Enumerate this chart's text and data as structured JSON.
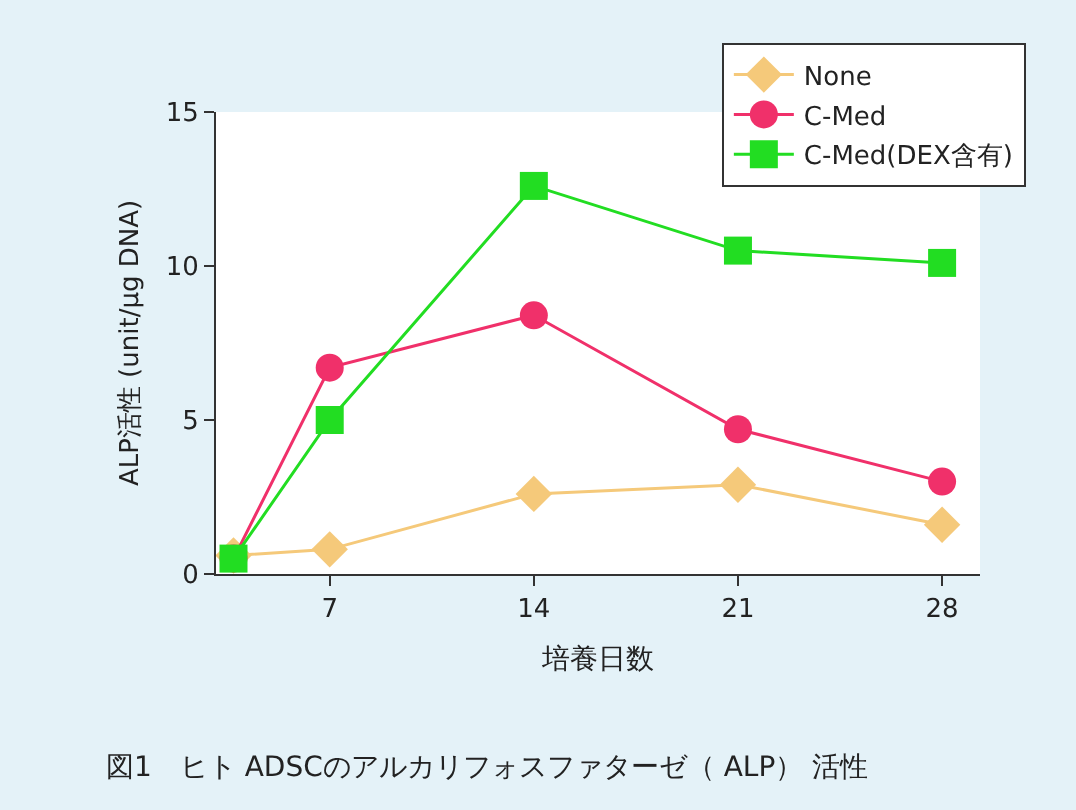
{
  "chart_data": {
    "type": "line",
    "xlabel": "培養日数",
    "ylabel": "ALP活性 (unit/μg DNA)",
    "x": [
      3.7,
      7,
      14,
      21,
      28
    ],
    "series": [
      {
        "name": "None",
        "color": "#f5c97a",
        "marker": "diamond",
        "values": [
          0.6,
          0.8,
          2.6,
          2.9,
          1.6
        ]
      },
      {
        "name": "C-Med",
        "color": "#f0306a",
        "marker": "circle",
        "values": [
          0.5,
          6.7,
          8.4,
          4.7,
          3.0
        ]
      },
      {
        "name": "C-Med(DEX含有)",
        "color": "#22dd22",
        "marker": "square",
        "values": [
          0.5,
          5.0,
          12.6,
          10.5,
          10.1
        ]
      }
    ],
    "xlim": [
      3.1,
      29.3
    ],
    "xticks": [
      7,
      14,
      21,
      28
    ],
    "ylim": [
      0,
      15
    ],
    "yticks": [
      0,
      5,
      10,
      15
    ],
    "legend": "top right",
    "line_style": "solid",
    "annotations": [
      "図1　ヒト ADSCのアルカリフォスファターゼ（ ALP） 活性"
    ]
  }
}
